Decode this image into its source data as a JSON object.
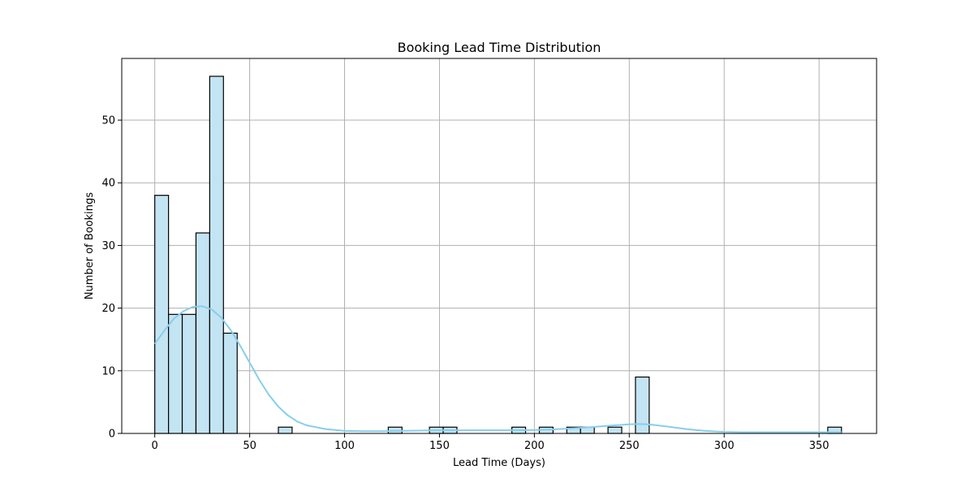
{
  "chart_data": {
    "type": "bar",
    "title": "Booking Lead Time Distribution",
    "xlabel": "Lead Time (Days)",
    "ylabel": "Number of Bookings",
    "xlim": [
      -17.4,
      380.3
    ],
    "ylim": [
      0,
      59.85
    ],
    "xticks": [
      0,
      50,
      100,
      150,
      200,
      250,
      300,
      350
    ],
    "yticks": [
      0,
      10,
      20,
      30,
      40,
      50
    ],
    "grid": true,
    "bin_width": 7.236,
    "bins": [
      {
        "x0": 0.0,
        "x1": 7.236,
        "count": 38
      },
      {
        "x0": 7.236,
        "x1": 14.472,
        "count": 19
      },
      {
        "x0": 14.472,
        "x1": 21.708,
        "count": 19
      },
      {
        "x0": 21.708,
        "x1": 28.944,
        "count": 32
      },
      {
        "x0": 28.944,
        "x1": 36.18,
        "count": 57
      },
      {
        "x0": 36.18,
        "x1": 43.416,
        "count": 16
      },
      {
        "x0": 65.124,
        "x1": 72.36,
        "count": 1
      },
      {
        "x0": 123.012,
        "x1": 130.248,
        "count": 1
      },
      {
        "x0": 144.72,
        "x1": 151.956,
        "count": 1
      },
      {
        "x0": 151.956,
        "x1": 159.192,
        "count": 1
      },
      {
        "x0": 188.136,
        "x1": 195.372,
        "count": 1
      },
      {
        "x0": 202.608,
        "x1": 209.844,
        "count": 1
      },
      {
        "x0": 217.08,
        "x1": 224.316,
        "count": 1
      },
      {
        "x0": 224.316,
        "x1": 231.552,
        "count": 1
      },
      {
        "x0": 238.788,
        "x1": 246.024,
        "count": 1
      },
      {
        "x0": 253.26,
        "x1": 260.496,
        "count": 9
      },
      {
        "x0": 354.564,
        "x1": 361.8,
        "count": 1
      }
    ],
    "kde": {
      "x": [
        0,
        5,
        10,
        15,
        20,
        25,
        30,
        35,
        40,
        45,
        50,
        55,
        60,
        65,
        70,
        75,
        80,
        90,
        100,
        110,
        120,
        130,
        140,
        150,
        160,
        170,
        180,
        190,
        200,
        210,
        220,
        230,
        240,
        250,
        255,
        260,
        270,
        280,
        290,
        300,
        310,
        320,
        330,
        340,
        350,
        361.8
      ],
      "y": [
        14.3,
        16.4,
        18.3,
        19.5,
        20.2,
        20.3,
        19.8,
        18.5,
        16.5,
        14.0,
        11.3,
        8.6,
        6.2,
        4.3,
        2.9,
        1.9,
        1.3,
        0.7,
        0.4,
        0.35,
        0.35,
        0.4,
        0.45,
        0.5,
        0.5,
        0.5,
        0.5,
        0.5,
        0.55,
        0.65,
        0.8,
        1.0,
        1.25,
        1.45,
        1.5,
        1.45,
        1.1,
        0.7,
        0.4,
        0.25,
        0.2,
        0.2,
        0.2,
        0.2,
        0.2,
        0.2
      ]
    },
    "colors": {
      "bar_fill": "#c3e4f2",
      "bar_edge": "#000000",
      "kde_line": "#87ceeb",
      "grid": "#b0b0b0"
    }
  }
}
